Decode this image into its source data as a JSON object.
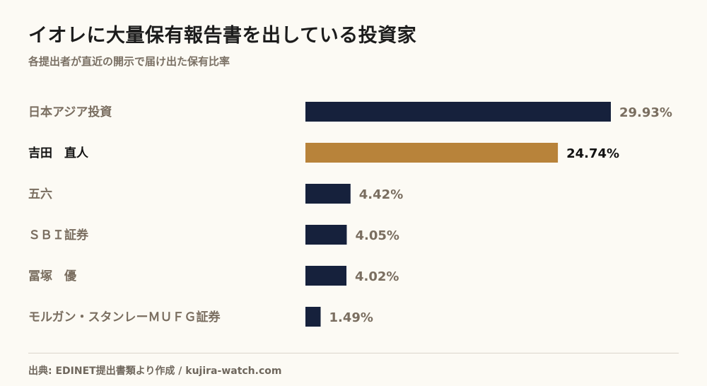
{
  "header": {
    "title": "イオレに大量保有報告書を出している投資家",
    "subtitle": "各提出者が直近の開示で届け出た保有比率"
  },
  "footer": {
    "source": "出典: EDINET提出書類より作成 / kujira-watch.com"
  },
  "colors": {
    "background": "#fcfaf4",
    "bar_default": "#16213c",
    "bar_highlight": "#b8833a",
    "label_default": "#7a6e60",
    "label_highlight": "#111111"
  },
  "chart_data": {
    "type": "bar",
    "orientation": "horizontal",
    "categories": [
      "日本アジア投資",
      "吉田　直人",
      "五六",
      "ＳＢＩ証券",
      "冨塚　優",
      "モルガン・スタンレーＭＵＦＧ証券"
    ],
    "values": [
      29.93,
      24.74,
      4.42,
      4.05,
      4.02,
      1.49
    ],
    "value_labels": [
      "29.93%",
      "24.74%",
      "4.42%",
      "4.05%",
      "4.02%",
      "1.49%"
    ],
    "highlight": [
      false,
      true,
      false,
      false,
      false,
      false
    ],
    "xlim": [
      0,
      29.93
    ],
    "unit": "%",
    "grid": false,
    "legend": "none"
  }
}
